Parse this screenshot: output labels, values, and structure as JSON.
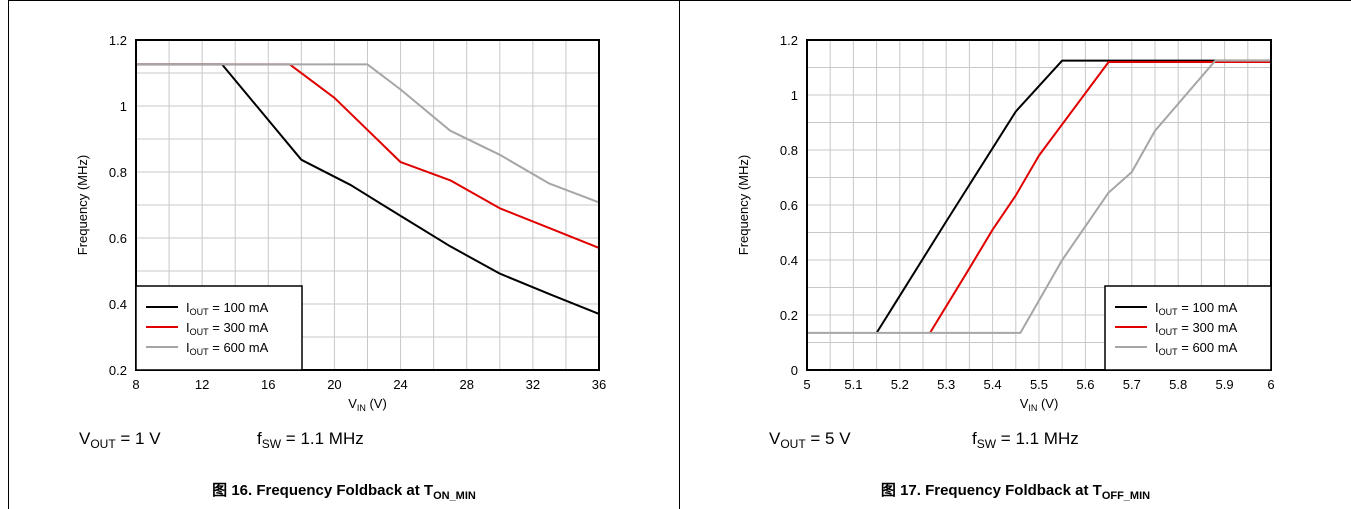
{
  "panels": [
    {
      "conditions": {
        "vout_label": "V",
        "vout_sub": "OUT",
        "vout_value": " = 1 V",
        "fsw_label": "f",
        "fsw_sub": "SW",
        "fsw_value": " = 1.1 MHz"
      },
      "caption": {
        "prefix": "图 16. Frequency Foldback at T",
        "sub": "ON_MIN"
      }
    },
    {
      "conditions": {
        "vout_label": "V",
        "vout_sub": "OUT",
        "vout_value": " = 5 V",
        "fsw_label": "f",
        "fsw_sub": "SW",
        "fsw_value": " = 1.1 MHz"
      },
      "caption": {
        "prefix": "图 17. Frequency Foldback at T",
        "sub": "OFF_MIN"
      }
    }
  ],
  "chart_data": [
    {
      "type": "line",
      "title": "",
      "xlabel": {
        "main": "V",
        "sub": "IN",
        "suffix": " (V)"
      },
      "ylabel": "Frequency (MHz)",
      "xlim": [
        8,
        36
      ],
      "ylim": [
        0.2,
        1.2
      ],
      "x_ticks": [
        8,
        12,
        16,
        20,
        24,
        28,
        32,
        36
      ],
      "y_ticks": [
        0.2,
        0.4,
        0.6,
        0.8,
        1,
        1.2
      ],
      "x_tick_labels": [
        "8",
        "12",
        "16",
        "20",
        "24",
        "28",
        "32",
        "36"
      ],
      "y_tick_labels": [
        "0.2",
        "0.4",
        "0.6",
        "0.8",
        "1",
        "1.2"
      ],
      "x_minor_step": 2,
      "y_minor_step": 0.1,
      "grid": true,
      "legend_position": "bottom-left",
      "series": [
        {
          "name_main": "I",
          "name_sub": "OUT",
          "name_suffix": " = 100 mA",
          "color": "#000000",
          "points": [
            [
              8,
              1.126
            ],
            [
              13.2,
              1.126
            ],
            [
              18,
              0.837
            ],
            [
              21,
              0.76
            ],
            [
              24,
              0.667
            ],
            [
              27,
              0.575
            ],
            [
              30,
              0.492
            ],
            [
              33,
              0.43
            ],
            [
              36,
              0.37
            ]
          ]
        },
        {
          "name_main": "I",
          "name_sub": "OUT",
          "name_suffix": " = 300 mA",
          "color": "#e00000",
          "points": [
            [
              8,
              1.126
            ],
            [
              17.3,
              1.126
            ],
            [
              20,
              1.025
            ],
            [
              24,
              0.83
            ],
            [
              27,
              0.775
            ],
            [
              30,
              0.69
            ],
            [
              33,
              0.63
            ],
            [
              36,
              0.57
            ]
          ]
        },
        {
          "name_main": "I",
          "name_sub": "OUT",
          "name_suffix": " = 600 mA",
          "color": "#a6a6a6",
          "points": [
            [
              8,
              1.126
            ],
            [
              22,
              1.126
            ],
            [
              24,
              1.05
            ],
            [
              27,
              0.925
            ],
            [
              30,
              0.852
            ],
            [
              33,
              0.765
            ],
            [
              36,
              0.708
            ]
          ]
        }
      ]
    },
    {
      "type": "line",
      "title": "",
      "xlabel": {
        "main": "V",
        "sub": "IN",
        "suffix": " (V)"
      },
      "ylabel": "Frequency (MHz)",
      "xlim": [
        5,
        6
      ],
      "ylim": [
        0,
        1.2
      ],
      "x_ticks": [
        5,
        5.1,
        5.2,
        5.3,
        5.4,
        5.5,
        5.6,
        5.7,
        5.8,
        5.9,
        6
      ],
      "y_ticks": [
        0,
        0.2,
        0.4,
        0.6,
        0.8,
        1,
        1.2
      ],
      "x_tick_labels": [
        "5",
        "5.1",
        "5.2",
        "5.3",
        "5.4",
        "5.5",
        "5.6",
        "5.7",
        "5.8",
        "5.9",
        "6"
      ],
      "y_tick_labels": [
        "0",
        "0.2",
        "0.4",
        "0.6",
        "0.8",
        "1",
        "1.2"
      ],
      "x_minor_step": 0.05,
      "y_minor_step": 0.1,
      "grid": true,
      "legend_position": "bottom-right",
      "series": [
        {
          "name_main": "I",
          "name_sub": "OUT",
          "name_suffix": " = 100 mA",
          "color": "#000000",
          "points": [
            [
              5.15,
              0.135
            ],
            [
              5.3,
              0.54
            ],
            [
              5.45,
              0.94
            ],
            [
              5.55,
              1.125
            ],
            [
              6,
              1.125
            ]
          ]
        },
        {
          "name_main": "I",
          "name_sub": "OUT",
          "name_suffix": " = 300 mA",
          "color": "#e00000",
          "points": [
            [
              5.265,
              0.135
            ],
            [
              5.35,
              0.37
            ],
            [
              5.4,
              0.51
            ],
            [
              5.45,
              0.635
            ],
            [
              5.5,
              0.78
            ],
            [
              5.65,
              1.12
            ],
            [
              6,
              1.12
            ]
          ]
        },
        {
          "name_main": "I",
          "name_sub": "OUT",
          "name_suffix": " = 600 mA",
          "color": "#a6a6a6",
          "points": [
            [
              5,
              0.135
            ],
            [
              5.46,
              0.135
            ],
            [
              5.55,
              0.4
            ],
            [
              5.65,
              0.645
            ],
            [
              5.7,
              0.72
            ],
            [
              5.75,
              0.87
            ],
            [
              5.88,
              1.125
            ],
            [
              6,
              1.125
            ]
          ]
        }
      ]
    }
  ]
}
